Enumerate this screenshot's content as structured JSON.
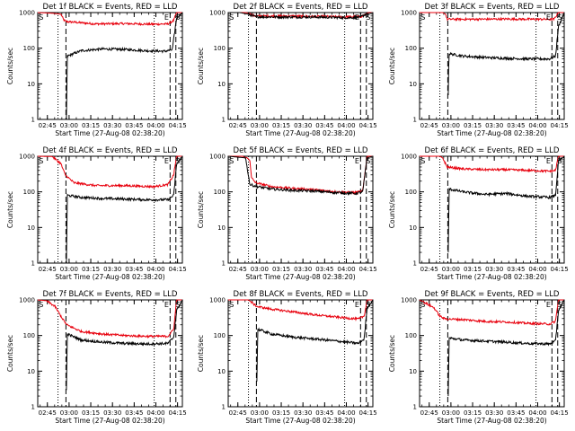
{
  "figure": {
    "panels": [
      {
        "title": "Det 1f BLACK = Events, RED = LLD",
        "ylabel": "Counts/sec",
        "xlabel": "Start Time (27-Aug-08 02:38:20)"
      },
      {
        "title": "Det 2f BLACK = Events, RED = LLD",
        "ylabel": "Counts/sec",
        "xlabel": "Start Time (27-Aug-08 02:38:20)"
      },
      {
        "title": "Det 3f BLACK = Events, RED = LLD",
        "ylabel": "Counts/sec",
        "xlabel": "Start Time (27-Aug-08 02:38:20)"
      },
      {
        "title": "Det 4f BLACK = Events, RED = LLD",
        "ylabel": "Counts/sec",
        "xlabel": "Start Time (27-Aug-08 02:38:20)"
      },
      {
        "title": "Det 5f BLACK = Events, RED = LLD",
        "ylabel": "Counts/sec",
        "xlabel": "Start Time (27-Aug-08 02:38:20)"
      },
      {
        "title": "Det 6f BLACK = Events, RED = LLD",
        "ylabel": "Counts/sec",
        "xlabel": "Start Time (27-Aug-08 02:38:20)"
      },
      {
        "title": "Det 7f BLACK = Events, RED = LLD",
        "ylabel": "Counts/sec",
        "xlabel": "Start Time (27-Aug-08 02:38:20)"
      },
      {
        "title": "Det 8f BLACK = Events, RED = LLD",
        "ylabel": "Counts/sec",
        "xlabel": "Start Time (27-Aug-08 02:38:20)"
      },
      {
        "title": "Det 9f BLACK = Events, RED = LLD",
        "ylabel": "Counts/sec",
        "xlabel": "Start Time (27-Aug-08 02:38:20)"
      }
    ]
  },
  "chart_data": {
    "type": "line",
    "layout": "3x3 grid",
    "series_colors": {
      "events": "#000000",
      "lld": "#e8000d"
    },
    "x_ticks": [
      "02:45",
      "03:00",
      "03:15",
      "03:30",
      "03:45",
      "04:00",
      "04:15"
    ],
    "x_tick_minutes": [
      6.67,
      21.67,
      36.67,
      51.67,
      66.67,
      81.67,
      96.67
    ],
    "xlim_minutes": [
      0,
      100
    ],
    "y_scale": "log",
    "ylim": [
      1,
      1000
    ],
    "y_ticks": [
      "1",
      "10",
      "100",
      "1000"
    ],
    "y_tick_values": [
      1,
      10,
      100,
      1000
    ],
    "markers": [
      {
        "text": "S",
        "x_minutes": 0.8
      },
      {
        "text": "E",
        "x_minutes": 87.5
      },
      {
        "text": "S",
        "x_minutes": 95.2
      }
    ],
    "vlines": [
      {
        "style": "dotted",
        "x_minutes": 14.0
      },
      {
        "style": "dashed",
        "x_minutes": 19.5
      },
      {
        "style": "dotted",
        "x_minutes": 80.5
      },
      {
        "style": "dashed",
        "x_minutes": 91.5
      },
      {
        "style": "dashed",
        "x_minutes": 95.5
      }
    ],
    "panels": [
      {
        "detector": "1f",
        "lld": [
          [
            0,
            1000
          ],
          [
            10,
            960
          ],
          [
            16,
            900
          ],
          [
            18,
            620
          ],
          [
            19.5,
            560
          ],
          [
            40,
            480
          ],
          [
            60,
            490
          ],
          [
            80,
            470
          ],
          [
            90,
            480
          ],
          [
            94,
            600
          ],
          [
            96,
            1000
          ],
          [
            100,
            1000
          ]
        ],
        "events": [
          [
            19.8,
            1
          ],
          [
            20.5,
            60
          ],
          [
            30,
            85
          ],
          [
            45,
            95
          ],
          [
            60,
            92
          ],
          [
            75,
            85
          ],
          [
            88,
            82
          ],
          [
            93,
            90
          ],
          [
            96,
            700
          ],
          [
            100,
            1000
          ]
        ]
      },
      {
        "detector": "2f",
        "lld": [
          [
            0,
            1000
          ],
          [
            6,
            1000
          ],
          [
            12,
            1000
          ],
          [
            15,
            950
          ],
          [
            17,
            820
          ],
          [
            20,
            800
          ],
          [
            40,
            800
          ],
          [
            60,
            780
          ],
          [
            80,
            760
          ],
          [
            92,
            770
          ],
          [
            95,
            900
          ],
          [
            97,
            1000
          ],
          [
            100,
            1000
          ]
        ],
        "events": [
          [
            0,
            1000
          ],
          [
            8,
            1000
          ],
          [
            14,
            900
          ],
          [
            17,
            800
          ],
          [
            20,
            760
          ],
          [
            40,
            750
          ],
          [
            60,
            750
          ],
          [
            80,
            720
          ],
          [
            91,
            730
          ],
          [
            95,
            900
          ],
          [
            100,
            1000
          ]
        ]
      },
      {
        "detector": "3f",
        "lld": [
          [
            0,
            1000
          ],
          [
            16,
            1000
          ],
          [
            18,
            900
          ],
          [
            19,
            650
          ],
          [
            40,
            650
          ],
          [
            60,
            660
          ],
          [
            80,
            650
          ],
          [
            93,
            650
          ],
          [
            96,
            1000
          ],
          [
            100,
            1000
          ]
        ],
        "events": [
          [
            19.8,
            5
          ],
          [
            20.3,
            70
          ],
          [
            30,
            60
          ],
          [
            45,
            55
          ],
          [
            60,
            52
          ],
          [
            75,
            50
          ],
          [
            90,
            50
          ],
          [
            94,
            60
          ],
          [
            96,
            400
          ],
          [
            100,
            1000
          ]
        ]
      },
      {
        "detector": "4f",
        "lld": [
          [
            0,
            1000
          ],
          [
            10,
            980
          ],
          [
            16,
            620
          ],
          [
            19,
            300
          ],
          [
            25,
            180
          ],
          [
            40,
            150
          ],
          [
            60,
            150
          ],
          [
            80,
            140
          ],
          [
            90,
            160
          ],
          [
            94,
            300
          ],
          [
            96,
            1000
          ],
          [
            100,
            1000
          ]
        ],
        "events": [
          [
            19.8,
            1
          ],
          [
            20.5,
            80
          ],
          [
            30,
            70
          ],
          [
            45,
            65
          ],
          [
            60,
            63
          ],
          [
            75,
            60
          ],
          [
            90,
            60
          ],
          [
            94,
            80
          ],
          [
            96,
            600
          ],
          [
            100,
            1000
          ]
        ]
      },
      {
        "detector": "5f",
        "lld": [
          [
            0,
            1000
          ],
          [
            10,
            1000
          ],
          [
            15,
            800
          ],
          [
            16,
            250
          ],
          [
            19,
            180
          ],
          [
            30,
            140
          ],
          [
            45,
            125
          ],
          [
            60,
            115
          ],
          [
            75,
            100
          ],
          [
            88,
            95
          ],
          [
            93,
            105
          ],
          [
            96,
            1000
          ],
          [
            100,
            1000
          ]
        ],
        "events": [
          [
            0,
            1000
          ],
          [
            12,
            900
          ],
          [
            15,
            160
          ],
          [
            20,
            140
          ],
          [
            30,
            120
          ],
          [
            45,
            110
          ],
          [
            60,
            105
          ],
          [
            75,
            95
          ],
          [
            88,
            90
          ],
          [
            93,
            100
          ],
          [
            96,
            900
          ],
          [
            100,
            1000
          ]
        ]
      },
      {
        "detector": "6f",
        "lld": [
          [
            0,
            1000
          ],
          [
            14,
            1000
          ],
          [
            16,
            900
          ],
          [
            19,
            500
          ],
          [
            30,
            440
          ],
          [
            45,
            420
          ],
          [
            60,
            420
          ],
          [
            75,
            400
          ],
          [
            90,
            380
          ],
          [
            94,
            400
          ],
          [
            96,
            1000
          ],
          [
            100,
            1000
          ]
        ],
        "events": [
          [
            19.8,
            2
          ],
          [
            20.5,
            120
          ],
          [
            30,
            100
          ],
          [
            45,
            85
          ],
          [
            60,
            90
          ],
          [
            75,
            75
          ],
          [
            90,
            70
          ],
          [
            94,
            80
          ],
          [
            96,
            700
          ],
          [
            100,
            1000
          ]
        ]
      },
      {
        "detector": "7f",
        "lld": [
          [
            0,
            1000
          ],
          [
            6,
            950
          ],
          [
            12,
            650
          ],
          [
            16,
            350
          ],
          [
            20,
            200
          ],
          [
            30,
            130
          ],
          [
            45,
            110
          ],
          [
            60,
            100
          ],
          [
            75,
            95
          ],
          [
            90,
            95
          ],
          [
            94,
            150
          ],
          [
            96,
            1000
          ],
          [
            100,
            1000
          ]
        ],
        "events": [
          [
            19.8,
            3
          ],
          [
            20.5,
            110
          ],
          [
            30,
            75
          ],
          [
            45,
            65
          ],
          [
            60,
            60
          ],
          [
            75,
            58
          ],
          [
            90,
            60
          ],
          [
            94,
            90
          ],
          [
            96,
            500
          ],
          [
            100,
            1000
          ]
        ]
      },
      {
        "detector": "8f",
        "lld": [
          [
            0,
            1000
          ],
          [
            14,
            1000
          ],
          [
            17,
            800
          ],
          [
            20,
            650
          ],
          [
            30,
            550
          ],
          [
            45,
            460
          ],
          [
            60,
            380
          ],
          [
            75,
            330
          ],
          [
            90,
            290
          ],
          [
            94,
            350
          ],
          [
            96,
            1000
          ],
          [
            100,
            1000
          ]
        ],
        "events": [
          [
            19.8,
            5
          ],
          [
            20.5,
            150
          ],
          [
            30,
            110
          ],
          [
            45,
            90
          ],
          [
            60,
            80
          ],
          [
            75,
            70
          ],
          [
            90,
            60
          ],
          [
            94,
            80
          ],
          [
            96,
            600
          ],
          [
            100,
            1000
          ]
        ]
      },
      {
        "detector": "9f",
        "lld": [
          [
            0,
            1000
          ],
          [
            10,
            600
          ],
          [
            14,
            350
          ],
          [
            17,
            300
          ],
          [
            20,
            290
          ],
          [
            30,
            280
          ],
          [
            45,
            250
          ],
          [
            60,
            240
          ],
          [
            75,
            220
          ],
          [
            90,
            210
          ],
          [
            94,
            250
          ],
          [
            96,
            1000
          ],
          [
            100,
            1000
          ]
        ],
        "events": [
          [
            19.8,
            2
          ],
          [
            20.5,
            85
          ],
          [
            30,
            75
          ],
          [
            45,
            70
          ],
          [
            60,
            65
          ],
          [
            75,
            60
          ],
          [
            90,
            58
          ],
          [
            94,
            70
          ],
          [
            96,
            500
          ],
          [
            100,
            1000
          ]
        ]
      }
    ]
  }
}
